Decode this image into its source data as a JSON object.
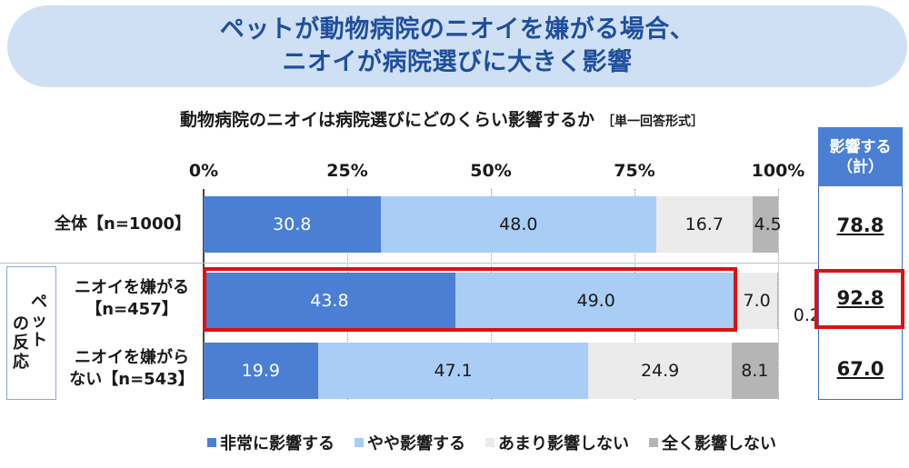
{
  "banner": {
    "line1": "ペットが動物病院のニオイを嫌がる場合、",
    "line2": "ニオイが病院選びに大きく影響"
  },
  "chart_data": {
    "type": "bar",
    "orientation": "horizontal-stacked-100",
    "title": "動物病院のニオイは病院選びにどのくらい影響するか",
    "note": "［単一回答形式］",
    "x_ticks": [
      "0%",
      "25%",
      "50%",
      "75%",
      "100%"
    ],
    "xlim": [
      0,
      100
    ],
    "group_label": "ペットの反応",
    "categories": [
      {
        "label_lines": [
          "全体【n=1000】"
        ]
      },
      {
        "label_lines": [
          "ニオイを嫌がる",
          "【n=457】"
        ]
      },
      {
        "label_lines": [
          "ニオイを嫌がら",
          "ない【n=543】"
        ]
      }
    ],
    "series": [
      {
        "name": "非常に影響する",
        "color": "#4a7fd4",
        "text_color": "#ffffff",
        "values": [
          30.8,
          43.8,
          19.9
        ],
        "labels": [
          "30.8",
          "43.8",
          "19.9"
        ]
      },
      {
        "name": "やや影響する",
        "color": "#a9cdf5",
        "text_color": "#1a1a1a",
        "values": [
          48.0,
          49.0,
          47.1
        ],
        "labels": [
          "48.0",
          "49.0",
          "47.1"
        ]
      },
      {
        "name": "あまり影響しない",
        "color": "#ebebeb",
        "text_color": "#1a1a1a",
        "values": [
          16.7,
          7.0,
          24.9
        ],
        "labels": [
          "16.7",
          "7.0",
          "24.9"
        ]
      },
      {
        "name": "全く影響しない",
        "color": "#b5b5b5",
        "text_color": "#1a1a1a",
        "values": [
          4.5,
          0.2,
          8.1
        ],
        "labels": [
          "4.5",
          "0.2",
          "8.1"
        ]
      }
    ],
    "summary": {
      "header_line1": "影響する",
      "header_line2": "（計）",
      "values": [
        "78.8",
        "92.8",
        "67.0"
      ]
    }
  }
}
